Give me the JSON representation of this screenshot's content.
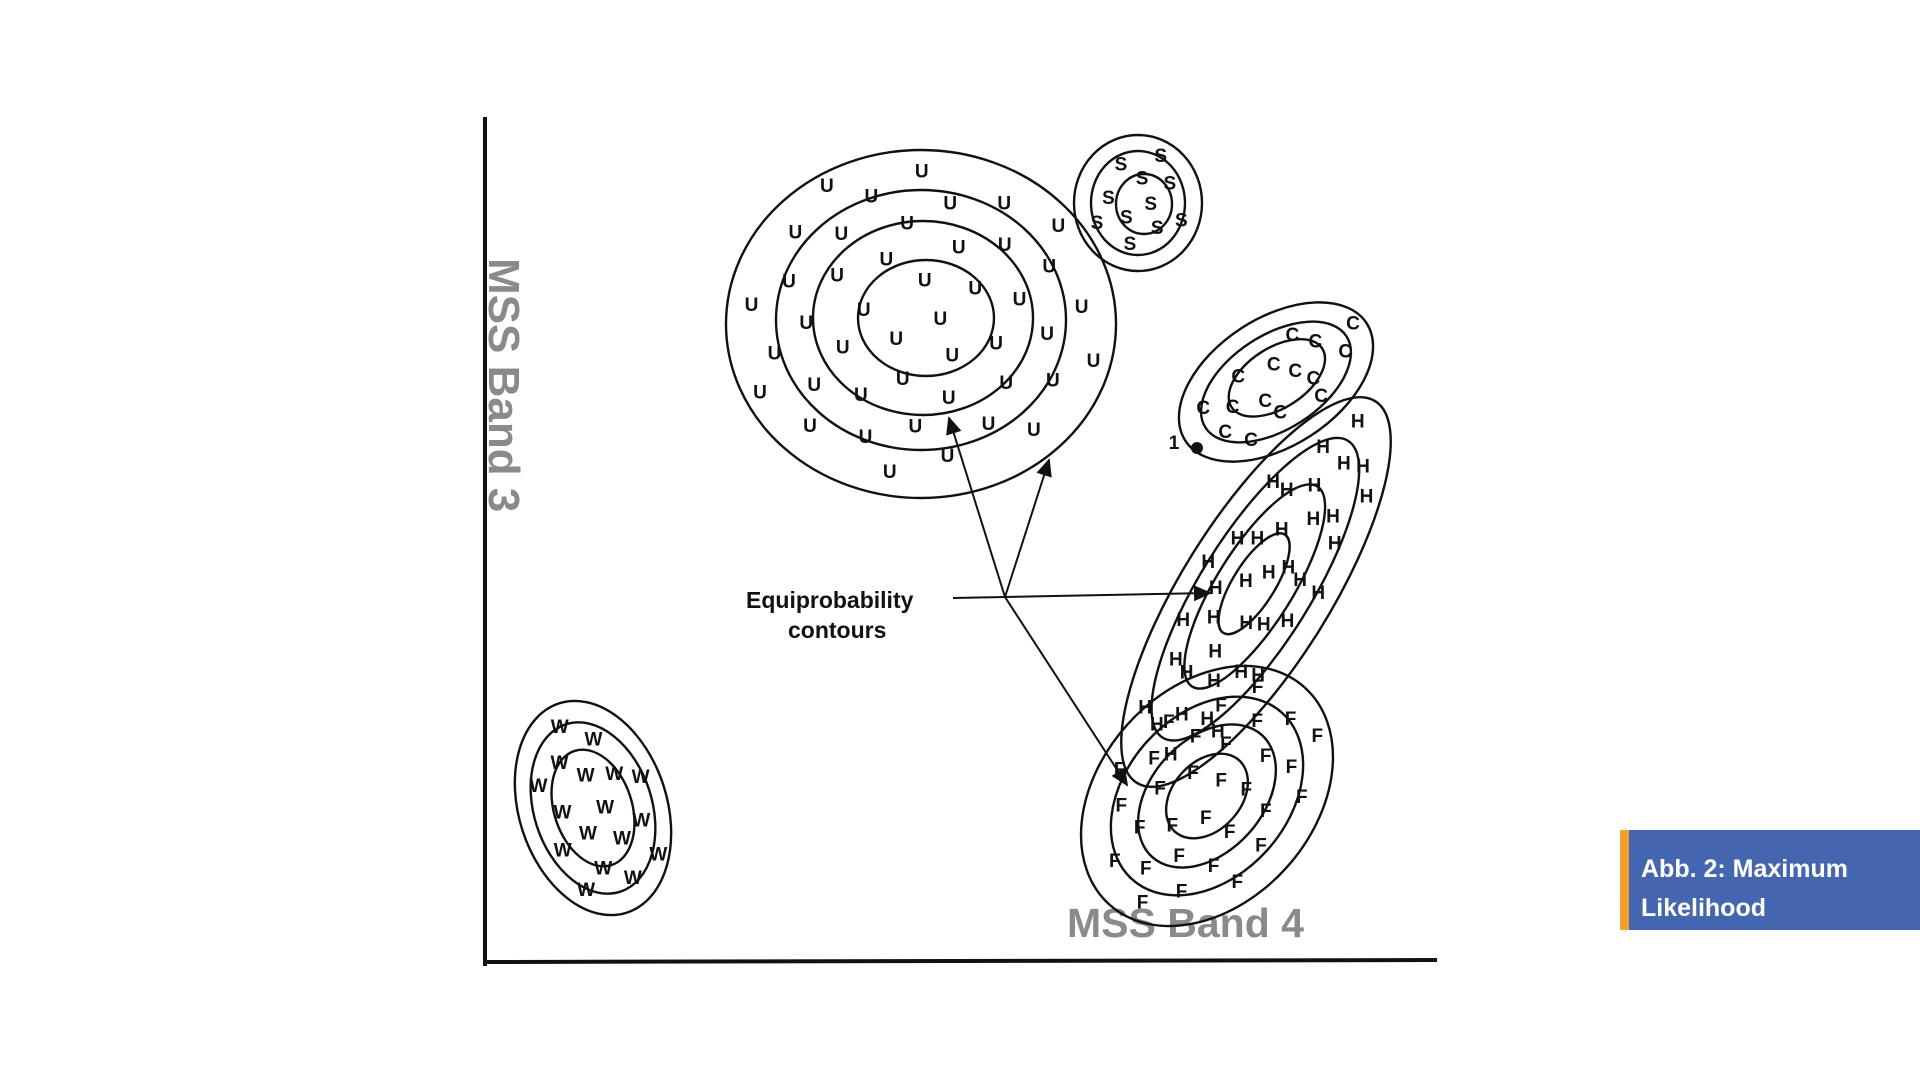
{
  "diagram": {
    "y_axis_label": "MSS Band 3",
    "x_axis_label": "MSS Band 4",
    "annotation": [
      "Equiprobability",
      "contours"
    ],
    "outlier_label": "1",
    "classes": [
      {
        "letter": "U",
        "count": 44
      },
      {
        "letter": "S",
        "count": 11
      },
      {
        "letter": "C",
        "count": 15
      },
      {
        "letter": "H",
        "count": 38
      },
      {
        "letter": "F",
        "count": 31
      },
      {
        "letter": "W",
        "count": 17
      }
    ]
  },
  "caption": {
    "line1": "Abb. 2: Maximum",
    "line2": "Likelihood"
  }
}
